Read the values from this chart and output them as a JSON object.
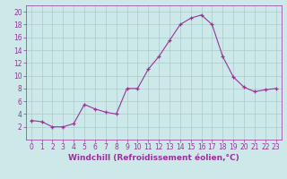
{
  "x": [
    0,
    1,
    2,
    3,
    4,
    5,
    6,
    7,
    8,
    9,
    10,
    11,
    12,
    13,
    14,
    15,
    16,
    17,
    18,
    19,
    20,
    21,
    22,
    23
  ],
  "y": [
    3,
    2.8,
    2,
    2,
    2.5,
    5.5,
    4.8,
    4.3,
    4,
    8,
    8,
    11,
    13,
    15.5,
    18,
    19,
    19.5,
    18,
    13,
    9.8,
    8.2,
    7.5,
    7.8,
    8
  ],
  "line_color": "#993399",
  "marker_color": "#993399",
  "bg_color": "#cce8e8",
  "grid_color": "#aacccc",
  "xlabel": "Windchill (Refroidissement éolien,°C)",
  "xlim": [
    -0.5,
    23.5
  ],
  "ylim": [
    0,
    21
  ],
  "yticks": [
    2,
    4,
    6,
    8,
    10,
    12,
    14,
    16,
    18,
    20
  ],
  "xticks": [
    0,
    1,
    2,
    3,
    4,
    5,
    6,
    7,
    8,
    9,
    10,
    11,
    12,
    13,
    14,
    15,
    16,
    17,
    18,
    19,
    20,
    21,
    22,
    23
  ],
  "font_color": "#993399",
  "axis_color": "#993399",
  "tick_fontsize": 5.5,
  "label_fontsize": 6.5,
  "label_fontweight": "bold"
}
